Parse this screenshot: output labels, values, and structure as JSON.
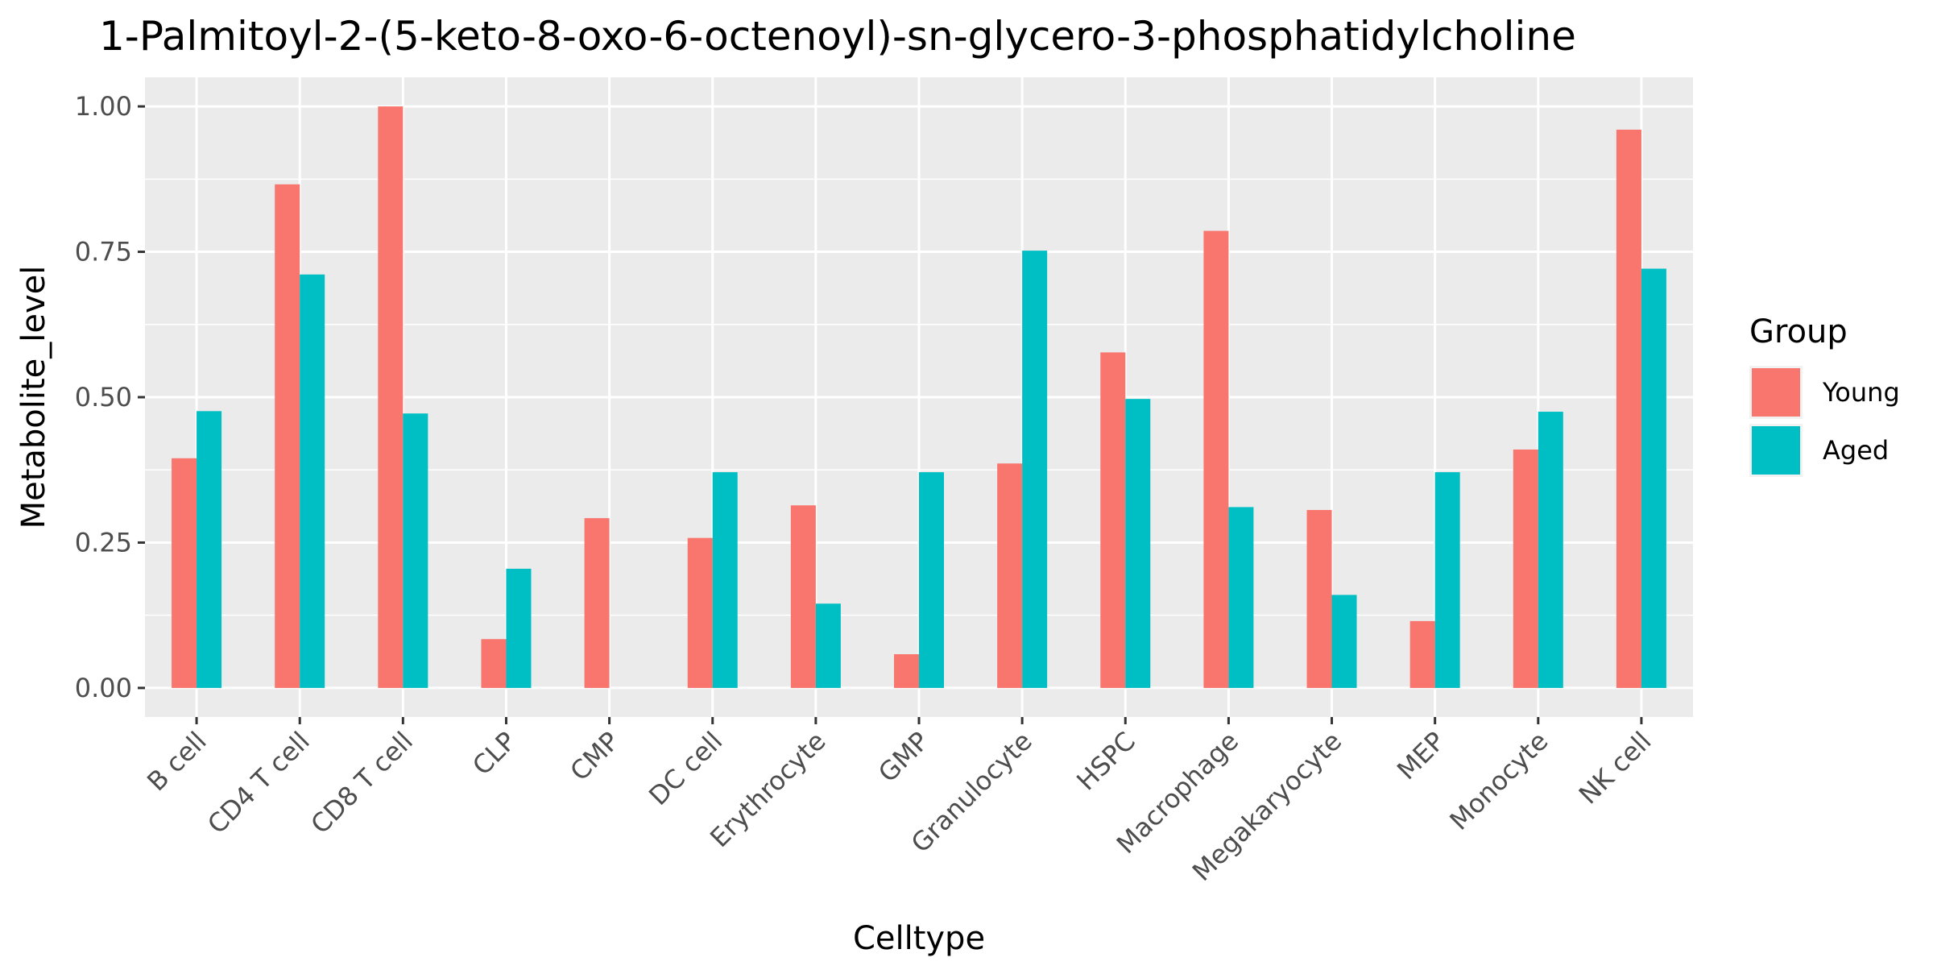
{
  "chart_data": {
    "type": "bar",
    "title": "1-Palmitoyl-2-(5-keto-8-oxo-6-octenoyl)-sn-glycero-3-phosphatidylcholine",
    "xlabel": "Celltype",
    "ylabel": "Metabolite_level",
    "ylim": [
      -0.05,
      1.05
    ],
    "yticks": [
      "0.00",
      "0.25",
      "0.50",
      "0.75",
      "1.00"
    ],
    "ytick_values": [
      0,
      0.25,
      0.5,
      0.75,
      1.0
    ],
    "grid": true,
    "legend": {
      "title": "Group",
      "position": "right"
    },
    "categories": [
      "B cell",
      "CD4 T cell",
      "CD8 T cell",
      "CLP",
      "CMP",
      "DC cell",
      "Erythrocyte",
      "GMP",
      "Granulocyte",
      "HSPC",
      "Macrophage",
      "Megakaryocyte",
      "MEP",
      "Monocyte",
      "NK cell"
    ],
    "series": [
      {
        "name": "Young",
        "color": "#F8766D",
        "values": [
          0.395,
          0.866,
          1.0,
          0.084,
          0.292,
          0.258,
          0.314,
          0.058,
          0.386,
          0.577,
          0.786,
          0.306,
          0.115,
          0.41,
          0.96
        ]
      },
      {
        "name": "Aged",
        "color": "#00BFC4",
        "values": [
          0.476,
          0.711,
          0.472,
          0.205,
          0.0,
          0.371,
          0.145,
          0.371,
          0.752,
          0.497,
          0.311,
          0.16,
          0.371,
          0.475,
          0.721
        ]
      }
    ]
  }
}
